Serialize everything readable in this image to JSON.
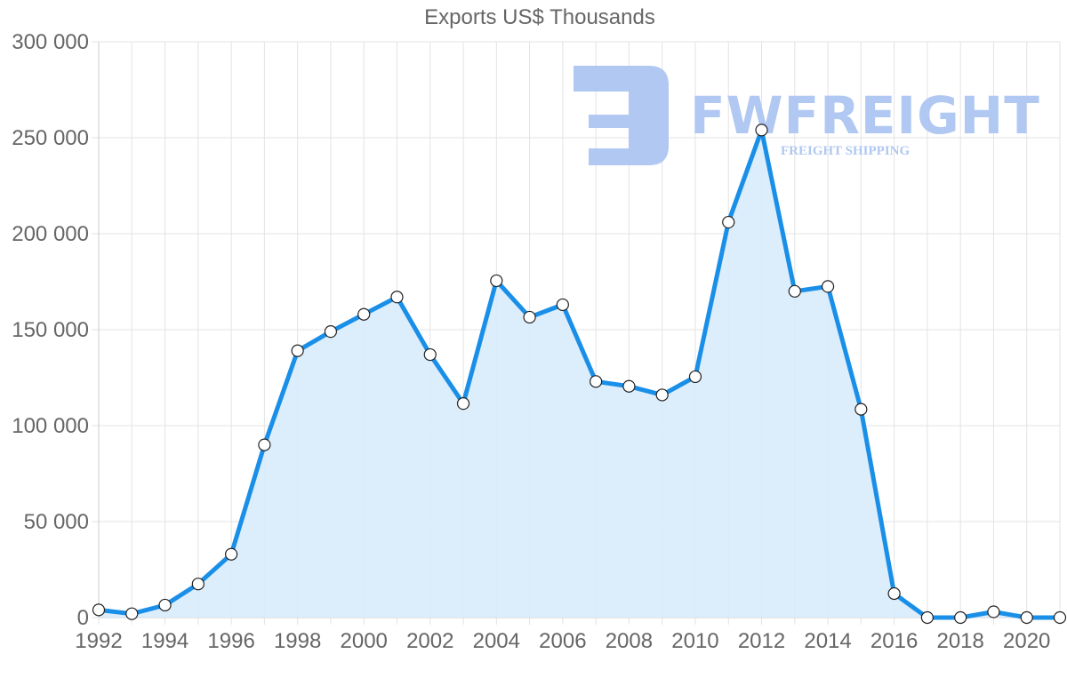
{
  "chart_data": {
    "type": "area",
    "title": "Exports US$ Thousands",
    "xlabel": "",
    "ylabel": "",
    "x": [
      1992,
      1993,
      1994,
      1995,
      1996,
      1997,
      1998,
      1999,
      2000,
      2001,
      2002,
      2003,
      2004,
      2005,
      2006,
      2007,
      2008,
      2009,
      2010,
      2011,
      2012,
      2013,
      2014,
      2015,
      2016,
      2017,
      2018,
      2019,
      2020,
      2021
    ],
    "series": [
      {
        "name": "Exports US$ Thousands",
        "color": "#1a8fe8",
        "fill": "#d8ebfb",
        "values": [
          4000,
          2000,
          6500,
          17500,
          33000,
          90000,
          139000,
          149000,
          158000,
          167000,
          137000,
          111500,
          175500,
          156500,
          163000,
          123000,
          120500,
          116000,
          125500,
          206000,
          254000,
          170000,
          172500,
          108500,
          12500,
          0,
          0,
          3000,
          0,
          0
        ]
      }
    ],
    "xticks": [
      "1992",
      "1994",
      "1996",
      "1998",
      "2000",
      "2002",
      "2004",
      "2006",
      "2008",
      "2010",
      "2012",
      "2014",
      "2016",
      "2018",
      "2020"
    ],
    "yticks": [
      "0",
      "50 000",
      "100 000",
      "150 000",
      "200 000",
      "250 000",
      "300 000"
    ],
    "ylim": [
      0,
      300000
    ],
    "xlim": [
      1992,
      2021
    ],
    "grid": true,
    "legend": "none"
  },
  "watermark": {
    "brand": "FWFREIGHT",
    "tagline": "FREIGHT SHIPPING",
    "color": "#b0c8f2"
  }
}
